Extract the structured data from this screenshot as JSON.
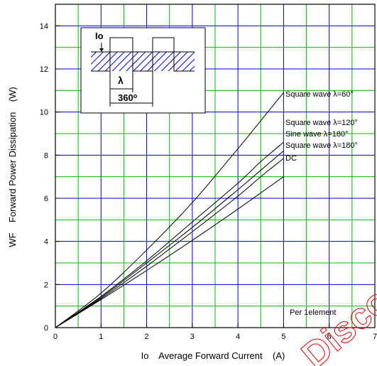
{
  "chart_data": {
    "type": "line",
    "title": "",
    "xlabel": "Io    Average Forward Current    (A)",
    "ylabel": "WF    Forward Power Dissipation    (W)",
    "xlim": [
      0,
      7
    ],
    "ylim": [
      0,
      15
    ],
    "x_ticks": [
      "0",
      "1",
      "2",
      "3",
      "4",
      "5",
      "6",
      "7"
    ],
    "y_ticks": [
      "0",
      "2",
      "4",
      "6",
      "8",
      "10",
      "12",
      "14"
    ],
    "grid": true,
    "series": [
      {
        "name": "Square wave λ=60°",
        "x": [
          0,
          1,
          2,
          3,
          4,
          4.5,
          5.0
        ],
        "y": [
          0,
          1.6,
          3.6,
          5.8,
          8.3,
          9.6,
          10.9
        ]
      },
      {
        "name": "Square wave λ=120°",
        "x": [
          0,
          1,
          2,
          3,
          4,
          4.5,
          5.0
        ],
        "y": [
          0,
          1.45,
          3.1,
          4.9,
          6.7,
          7.7,
          8.6
        ]
      },
      {
        "name": "Sine wave λ=180°",
        "x": [
          0,
          1,
          2,
          3,
          4,
          4.5,
          5.0
        ],
        "y": [
          0,
          1.4,
          3.0,
          4.65,
          6.4,
          7.3,
          8.2
        ]
      },
      {
        "name": "Square wave λ=180°",
        "x": [
          0,
          1,
          2,
          3,
          4,
          4.5,
          5.0
        ],
        "y": [
          0,
          1.35,
          2.85,
          4.45,
          6.1,
          7.0,
          7.85
        ]
      },
      {
        "name": "DC",
        "x": [
          0,
          1,
          2,
          3,
          4,
          4.5,
          5.0
        ],
        "y": [
          0,
          1.3,
          2.65,
          4.05,
          5.5,
          6.25,
          7.0
        ]
      }
    ],
    "annotations": [
      "Per 1element"
    ],
    "inset": {
      "label_io": "Io",
      "label_lambda": "λ",
      "label_360": "360",
      "label_360_sup": "o"
    },
    "watermark": "Discovery",
    "colors": {
      "grid_blue": "#0000cc",
      "grid_green": "#00bb00",
      "hatch": "#0000dd",
      "curve": "#000000"
    }
  }
}
